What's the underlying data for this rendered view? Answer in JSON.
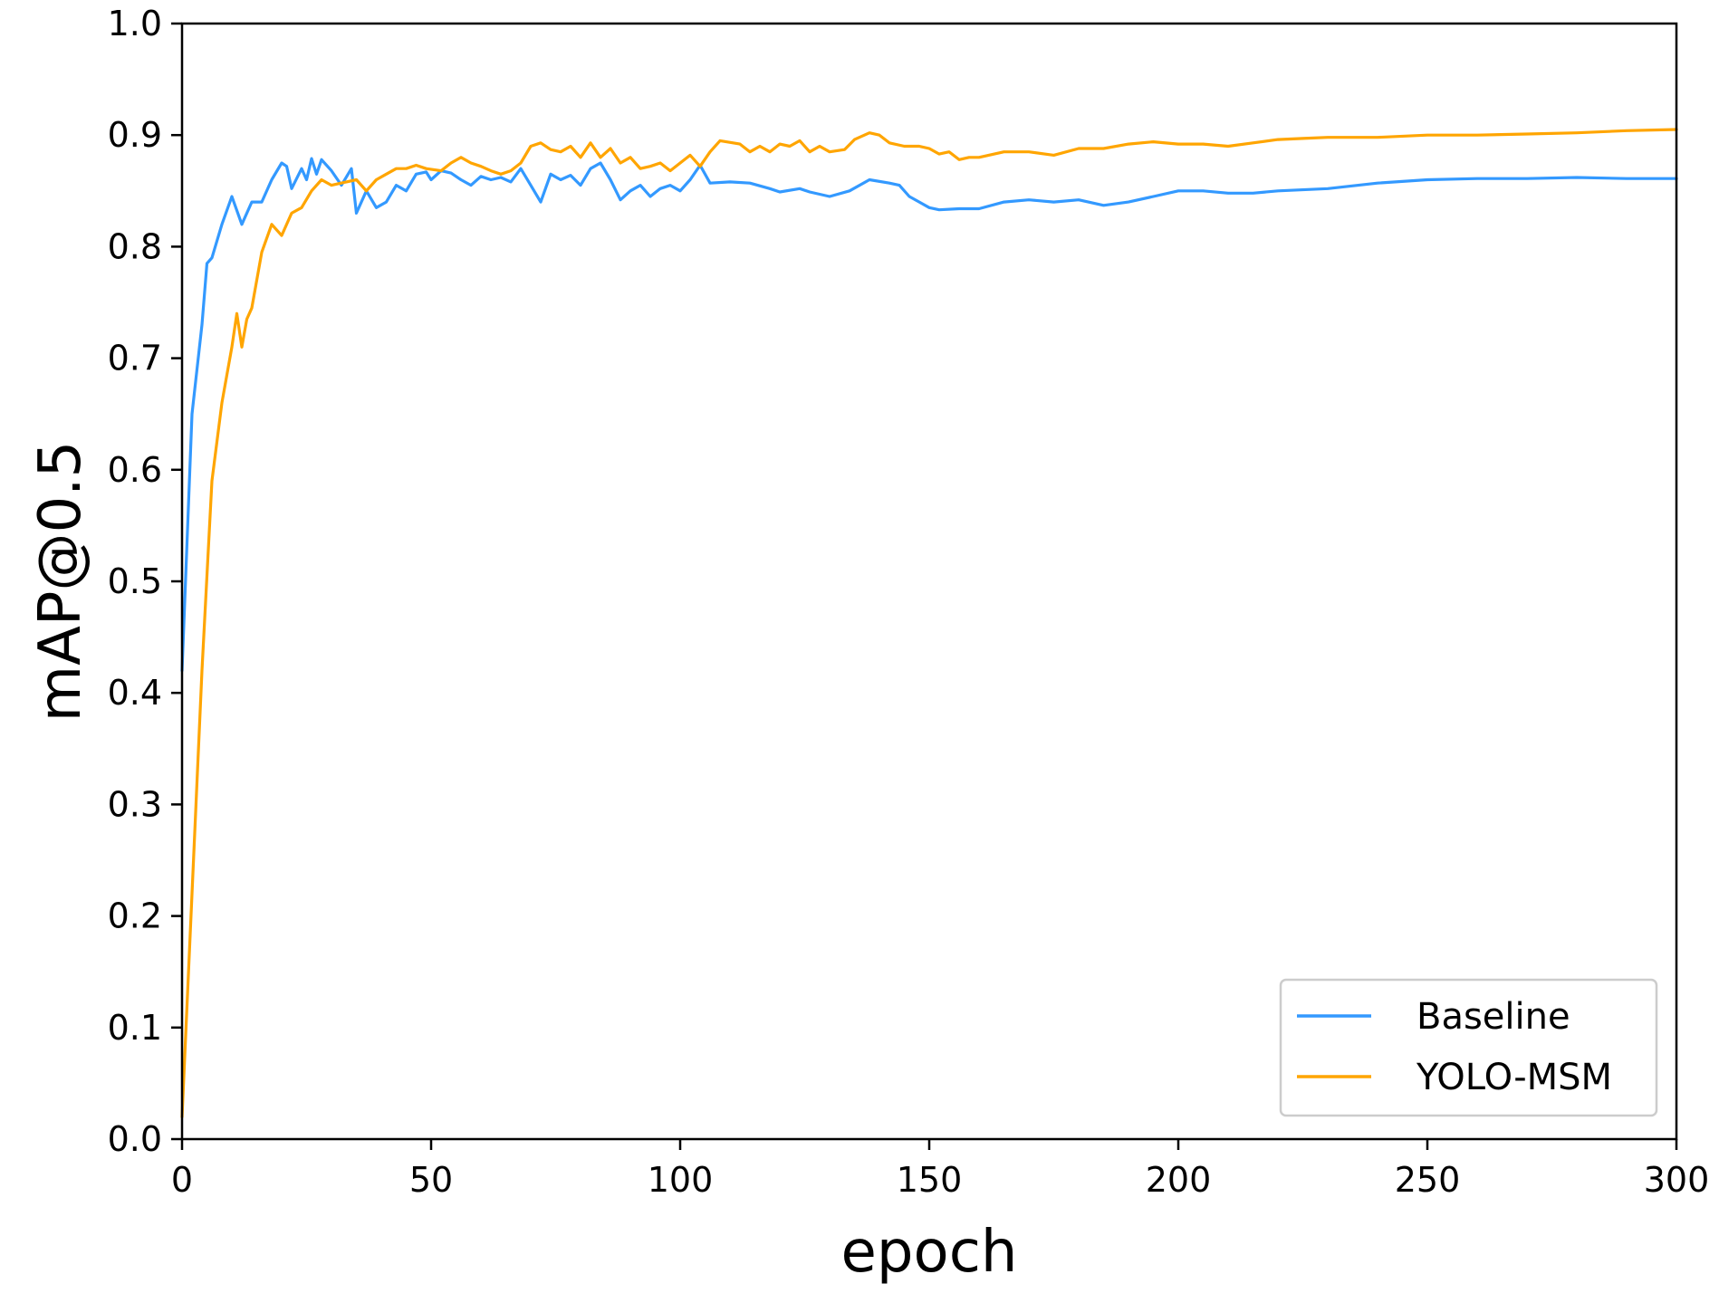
{
  "chart_data": {
    "type": "line",
    "xlabel": "epoch",
    "ylabel": "mAP@0.5",
    "xlim": [
      0,
      300
    ],
    "ylim": [
      0.0,
      1.0
    ],
    "xticks": [
      "0",
      "50",
      "100",
      "150",
      "200",
      "250",
      "300"
    ],
    "yticks": [
      "0.0",
      "0.1",
      "0.2",
      "0.3",
      "0.4",
      "0.5",
      "0.6",
      "0.7",
      "0.8",
      "0.9",
      "1.0"
    ],
    "grid": false,
    "legend_position": "lower-right",
    "series": [
      {
        "name": "Baseline",
        "color": "#3399ff",
        "points": [
          [
            0,
            0.42
          ],
          [
            2,
            0.65
          ],
          [
            4,
            0.73
          ],
          [
            5,
            0.785
          ],
          [
            6,
            0.79
          ],
          [
            8,
            0.82
          ],
          [
            10,
            0.845
          ],
          [
            12,
            0.82
          ],
          [
            14,
            0.84
          ],
          [
            16,
            0.84
          ],
          [
            18,
            0.86
          ],
          [
            20,
            0.875
          ],
          [
            21,
            0.872
          ],
          [
            22,
            0.852
          ],
          [
            24,
            0.87
          ],
          [
            25,
            0.86
          ],
          [
            26,
            0.879
          ],
          [
            27,
            0.865
          ],
          [
            28,
            0.878
          ],
          [
            30,
            0.868
          ],
          [
            32,
            0.855
          ],
          [
            34,
            0.87
          ],
          [
            35,
            0.83
          ],
          [
            37,
            0.85
          ],
          [
            39,
            0.835
          ],
          [
            41,
            0.84
          ],
          [
            43,
            0.855
          ],
          [
            45,
            0.85
          ],
          [
            47,
            0.865
          ],
          [
            49,
            0.867
          ],
          [
            50,
            0.86
          ],
          [
            52,
            0.868
          ],
          [
            54,
            0.866
          ],
          [
            56,
            0.86
          ],
          [
            58,
            0.855
          ],
          [
            60,
            0.863
          ],
          [
            62,
            0.86
          ],
          [
            64,
            0.862
          ],
          [
            66,
            0.858
          ],
          [
            68,
            0.87
          ],
          [
            70,
            0.855
          ],
          [
            72,
            0.84
          ],
          [
            74,
            0.865
          ],
          [
            76,
            0.86
          ],
          [
            78,
            0.864
          ],
          [
            80,
            0.855
          ],
          [
            82,
            0.87
          ],
          [
            84,
            0.875
          ],
          [
            86,
            0.86
          ],
          [
            88,
            0.842
          ],
          [
            90,
            0.85
          ],
          [
            92,
            0.855
          ],
          [
            94,
            0.845
          ],
          [
            96,
            0.852
          ],
          [
            98,
            0.855
          ],
          [
            100,
            0.85
          ],
          [
            102,
            0.86
          ],
          [
            104,
            0.873
          ],
          [
            106,
            0.857
          ],
          [
            110,
            0.858
          ],
          [
            114,
            0.857
          ],
          [
            118,
            0.852
          ],
          [
            120,
            0.849
          ],
          [
            124,
            0.852
          ],
          [
            126,
            0.849
          ],
          [
            128,
            0.847
          ],
          [
            130,
            0.845
          ],
          [
            134,
            0.85
          ],
          [
            138,
            0.86
          ],
          [
            142,
            0.857
          ],
          [
            144,
            0.855
          ],
          [
            146,
            0.845
          ],
          [
            148,
            0.84
          ],
          [
            150,
            0.835
          ],
          [
            152,
            0.833
          ],
          [
            156,
            0.834
          ],
          [
            160,
            0.834
          ],
          [
            165,
            0.84
          ],
          [
            170,
            0.842
          ],
          [
            175,
            0.84
          ],
          [
            180,
            0.842
          ],
          [
            185,
            0.837
          ],
          [
            190,
            0.84
          ],
          [
            195,
            0.845
          ],
          [
            200,
            0.85
          ],
          [
            205,
            0.85
          ],
          [
            210,
            0.848
          ],
          [
            215,
            0.848
          ],
          [
            220,
            0.85
          ],
          [
            230,
            0.852
          ],
          [
            240,
            0.857
          ],
          [
            250,
            0.86
          ],
          [
            260,
            0.861
          ],
          [
            270,
            0.861
          ],
          [
            280,
            0.862
          ],
          [
            290,
            0.861
          ],
          [
            300,
            0.861
          ]
        ]
      },
      {
        "name": "YOLO-MSM",
        "color": "#ffa500",
        "points": [
          [
            0,
            0.02
          ],
          [
            2,
            0.22
          ],
          [
            4,
            0.42
          ],
          [
            6,
            0.59
          ],
          [
            8,
            0.66
          ],
          [
            10,
            0.71
          ],
          [
            11,
            0.74
          ],
          [
            12,
            0.71
          ],
          [
            13,
            0.735
          ],
          [
            14,
            0.745
          ],
          [
            16,
            0.795
          ],
          [
            18,
            0.82
          ],
          [
            20,
            0.81
          ],
          [
            22,
            0.83
          ],
          [
            24,
            0.835
          ],
          [
            26,
            0.85
          ],
          [
            28,
            0.86
          ],
          [
            30,
            0.855
          ],
          [
            33,
            0.858
          ],
          [
            35,
            0.86
          ],
          [
            37,
            0.85
          ],
          [
            39,
            0.86
          ],
          [
            41,
            0.865
          ],
          [
            43,
            0.87
          ],
          [
            45,
            0.87
          ],
          [
            47,
            0.873
          ],
          [
            49,
            0.87
          ],
          [
            52,
            0.868
          ],
          [
            54,
            0.875
          ],
          [
            56,
            0.88
          ],
          [
            58,
            0.875
          ],
          [
            60,
            0.872
          ],
          [
            62,
            0.868
          ],
          [
            64,
            0.865
          ],
          [
            66,
            0.868
          ],
          [
            68,
            0.875
          ],
          [
            70,
            0.89
          ],
          [
            72,
            0.893
          ],
          [
            74,
            0.887
          ],
          [
            76,
            0.885
          ],
          [
            78,
            0.89
          ],
          [
            80,
            0.88
          ],
          [
            82,
            0.893
          ],
          [
            84,
            0.88
          ],
          [
            86,
            0.888
          ],
          [
            88,
            0.875
          ],
          [
            90,
            0.88
          ],
          [
            92,
            0.87
          ],
          [
            94,
            0.872
          ],
          [
            96,
            0.875
          ],
          [
            98,
            0.868
          ],
          [
            100,
            0.875
          ],
          [
            102,
            0.882
          ],
          [
            104,
            0.872
          ],
          [
            106,
            0.885
          ],
          [
            108,
            0.895
          ],
          [
            112,
            0.892
          ],
          [
            114,
            0.885
          ],
          [
            116,
            0.89
          ],
          [
            118,
            0.885
          ],
          [
            120,
            0.892
          ],
          [
            122,
            0.89
          ],
          [
            124,
            0.895
          ],
          [
            126,
            0.885
          ],
          [
            128,
            0.89
          ],
          [
            130,
            0.885
          ],
          [
            133,
            0.887
          ],
          [
            135,
            0.896
          ],
          [
            138,
            0.902
          ],
          [
            140,
            0.9
          ],
          [
            142,
            0.893
          ],
          [
            145,
            0.89
          ],
          [
            148,
            0.89
          ],
          [
            150,
            0.888
          ],
          [
            152,
            0.883
          ],
          [
            154,
            0.885
          ],
          [
            156,
            0.878
          ],
          [
            158,
            0.88
          ],
          [
            160,
            0.88
          ],
          [
            165,
            0.885
          ],
          [
            170,
            0.885
          ],
          [
            175,
            0.882
          ],
          [
            180,
            0.888
          ],
          [
            185,
            0.888
          ],
          [
            190,
            0.892
          ],
          [
            195,
            0.894
          ],
          [
            200,
            0.892
          ],
          [
            205,
            0.892
          ],
          [
            210,
            0.89
          ],
          [
            215,
            0.893
          ],
          [
            220,
            0.896
          ],
          [
            225,
            0.897
          ],
          [
            230,
            0.898
          ],
          [
            240,
            0.898
          ],
          [
            250,
            0.9
          ],
          [
            260,
            0.9
          ],
          [
            270,
            0.901
          ],
          [
            280,
            0.902
          ],
          [
            290,
            0.904
          ],
          [
            300,
            0.905
          ]
        ]
      }
    ]
  }
}
